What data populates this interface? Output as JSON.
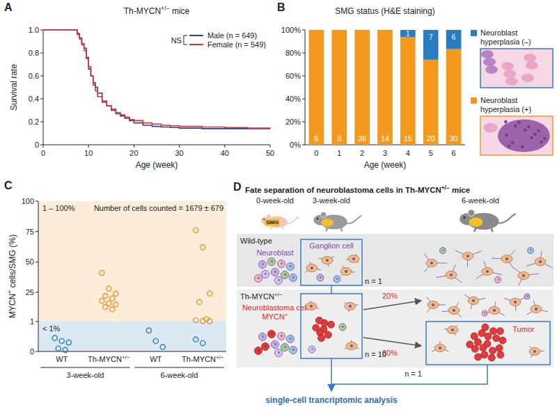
{
  "chart_data": [
    {
      "panel": "A",
      "type": "line",
      "line_style": "step",
      "title": "Th-MYCN+/− mice",
      "xlabel": "Age (week)",
      "ylabel": "Survival rate",
      "x": [
        0,
        7.5,
        8,
        8.5,
        9,
        9.5,
        10,
        10.5,
        11,
        11.5,
        12,
        13,
        14,
        15,
        16,
        17,
        18,
        19,
        20,
        22,
        24,
        26,
        28,
        30,
        35,
        40,
        45,
        50
      ],
      "xlim": [
        0,
        50
      ],
      "xticks": [
        0,
        10,
        20,
        30,
        40,
        50
      ],
      "ylim": [
        0,
        1
      ],
      "yticks": [
        0,
        0.2,
        0.4,
        0.6,
        0.8,
        {
          "value": 1,
          "label": "1.0"
        }
      ],
      "grid": false,
      "legend": "top-right",
      "annotations": [
        "NS"
      ],
      "series": [
        {
          "name": "Male (n = 649)",
          "color": "#2e3f98",
          "values": [
            1,
            0.97,
            0.93,
            0.88,
            0.84,
            0.76,
            0.66,
            0.6,
            0.54,
            0.5,
            0.45,
            0.38,
            0.34,
            0.3,
            0.27,
            0.25,
            0.23,
            0.21,
            0.19,
            0.17,
            0.16,
            0.155,
            0.15,
            0.145,
            0.14,
            0.14,
            0.14,
            0.14
          ]
        },
        {
          "name": "Female (n = 549)",
          "color": "#e0302b",
          "values": [
            1,
            0.96,
            0.92,
            0.87,
            0.82,
            0.75,
            0.68,
            0.6,
            0.52,
            0.47,
            0.42,
            0.37,
            0.34,
            0.31,
            0.28,
            0.26,
            0.24,
            0.22,
            0.21,
            0.19,
            0.18,
            0.17,
            0.165,
            0.16,
            0.155,
            0.15,
            0.145,
            0.14
          ]
        }
      ]
    },
    {
      "panel": "B",
      "type": "bar",
      "stacked": true,
      "title": "SMG status (H&E staining)",
      "xlabel": "Age (week)",
      "categories": [
        "0",
        "1",
        "2",
        "3",
        "4",
        "5",
        "6"
      ],
      "ylim": [
        0,
        100
      ],
      "yticks": [
        {
          "value": 0,
          "label": "0%"
        },
        {
          "value": 20,
          "label": "20%"
        },
        {
          "value": 40,
          "label": "40%"
        },
        {
          "value": 60,
          "label": "60%"
        },
        {
          "value": 80,
          "label": "80%"
        },
        {
          "value": 100,
          "label": "100%"
        }
      ],
      "legend": "right",
      "series": [
        {
          "name": "Neuroblast hyperplasia (+)",
          "color": "#f39a1e",
          "values": [
            100,
            100,
            100,
            100,
            93.75,
            74.07,
            83.33
          ],
          "counts": [
            6,
            9,
            36,
            14,
            15,
            20,
            30
          ]
        },
        {
          "name": "Neuroblast hyperplasia (–)",
          "color": "#2b7bbf",
          "values": [
            0,
            0,
            0,
            0,
            6.25,
            25.93,
            16.67
          ],
          "counts": [
            null,
            null,
            null,
            null,
            1,
            7,
            6
          ]
        }
      ]
    },
    {
      "panel": "C",
      "type": "scatter",
      "marker": "circle-open",
      "ylabel": "MYCN+ cells/SMG (%)",
      "categories": [
        null,
        null,
        null,
        null
      ],
      "tick_labels": "y",
      "ylim": [
        1,
        100
      ],
      "yticks": [
        1,
        25,
        50,
        75,
        100
      ],
      "annotations": [
        "1 – 100%",
        "Number of cells counted = 1679 ± 679"
      ],
      "series": [
        {
          "color": "#f0922b",
          "values": [
            [],
            [
              41,
              28,
              24,
              22,
              20,
              18,
              16,
              15,
              13,
              11
            ],
            [],
            [
              76,
              62,
              24,
              17,
              3,
              2,
              1.5,
              1.2
            ]
          ]
        }
      ]
    },
    {
      "type": "scatter",
      "marker": "circle-open",
      "categories": [
        "WT",
        "Th-MYCN+/−",
        "WT",
        "Th-MYCN+/−"
      ],
      "groups": [
        "3-week-old",
        "6-week-old"
      ],
      "ylim": [
        0,
        1
      ],
      "yticks": [
        0
      ],
      "annotations": [
        "< 1%"
      ],
      "series": [
        {
          "color": "#2b7bbf",
          "values": [
            [
              0.45,
              0.35,
              0.3,
              0.1,
              0.05
            ],
            [],
            [
              0.7,
              0.35,
              0.15
            ],
            [
              0.4,
              0.28
            ]
          ]
        }
      ]
    }
  ],
  "diagram": {
    "panel": "D",
    "title": "Fate separation of neuroblastoma cells in Th-MYCN+/− mice",
    "columns": [
      "0-week-old",
      "3-week-old",
      "6-week-old"
    ],
    "rows": [
      {
        "label": "Wild-type",
        "n": "n = 1"
      },
      {
        "label": "Th-MYCN+/−",
        "n": "n = 10"
      }
    ],
    "labels": {
      "smg": "SMG",
      "neuroblast": "Neuroblast",
      "ganglion": "Ganglion cell",
      "nb_cell": "Neuroblastoma cell",
      "mycn": "MYCN+",
      "tumor": "Tumor"
    },
    "fates": [
      {
        "label": "20%"
      },
      {
        "label": "80%",
        "n": "n = 1"
      }
    ],
    "footer": "single-cell trancriptomic analysis"
  }
}
